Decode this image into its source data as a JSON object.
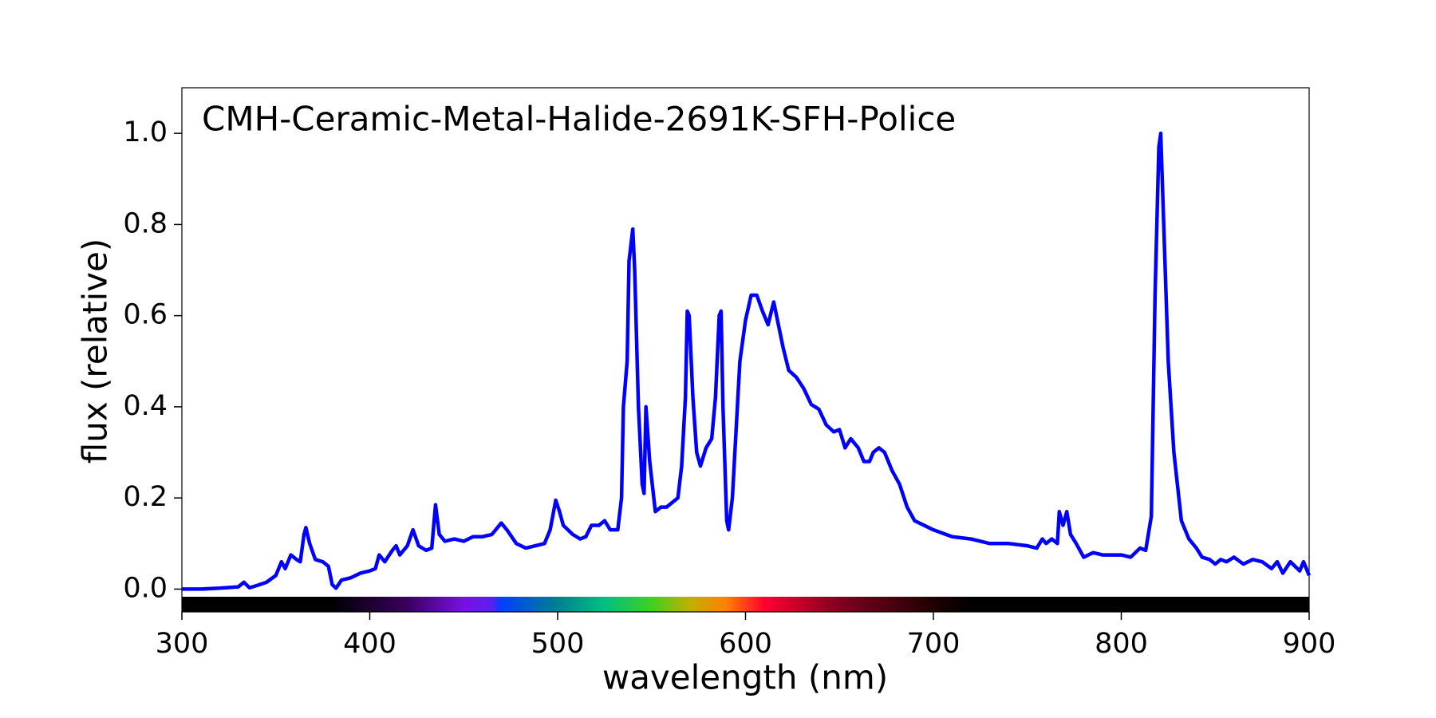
{
  "chart_data": {
    "type": "line",
    "title": "CMH-Ceramic-Metal-Halide-2691K-SFH-Police",
    "xlabel": "wavelength (nm)",
    "ylabel": "flux (relative)",
    "xlim": [
      300,
      900
    ],
    "ylim": [
      -0.05,
      1.1
    ],
    "xticks": [
      300,
      400,
      500,
      600,
      700,
      800,
      900
    ],
    "yticks": [
      {
        "value": 0,
        "label": "0.0"
      },
      0.2,
      0.4,
      0.6,
      0.8,
      {
        "value": 1,
        "label": "1.0"
      }
    ],
    "series": [
      {
        "color": "#0000ff",
        "x": [
          300,
          310,
          320,
          330,
          333,
          336,
          340,
          345,
          350,
          353,
          355,
          358,
          361,
          363,
          365,
          366,
          368,
          371,
          375,
          378,
          380,
          382,
          385,
          390,
          395,
          400,
          403,
          405,
          408,
          412,
          414,
          416,
          420,
          423,
          426,
          430,
          433,
          435,
          437,
          440,
          445,
          450,
          455,
          460,
          465,
          470,
          473,
          478,
          483,
          488,
          493,
          496,
          499,
          501,
          503,
          508,
          512,
          515,
          518,
          522,
          525,
          528,
          532,
          534,
          535,
          537,
          538,
          540,
          541,
          543,
          545,
          546,
          547,
          549,
          552,
          555,
          558,
          561,
          564,
          566,
          568,
          569,
          570,
          572,
          574,
          576,
          579,
          582,
          584,
          586,
          587,
          588,
          590,
          591,
          593,
          595,
          597,
          600,
          603,
          606,
          609,
          612,
          615,
          618,
          620,
          623,
          627,
          631,
          635,
          639,
          643,
          647,
          650,
          653,
          656,
          660,
          663,
          666,
          668,
          671,
          674,
          678,
          682,
          686,
          690,
          695,
          700,
          710,
          720,
          730,
          740,
          750,
          755,
          758,
          760,
          763,
          766,
          767,
          769,
          771,
          773,
          776,
          780,
          785,
          790,
          800,
          805,
          810,
          813,
          816,
          818,
          820,
          821,
          823,
          825,
          828,
          832,
          836,
          840,
          843,
          847,
          850,
          853,
          856,
          860,
          865,
          870,
          875,
          880,
          883,
          886,
          890,
          895,
          897,
          900
        ],
        "values": [
          0,
          0,
          0.002,
          0.005,
          0.015,
          0.003,
          0.008,
          0.015,
          0.03,
          0.06,
          0.045,
          0.075,
          0.065,
          0.06,
          0.12,
          0.135,
          0.1,
          0.065,
          0.06,
          0.05,
          0.01,
          0.002,
          0.02,
          0.025,
          0.035,
          0.04,
          0.045,
          0.075,
          0.06,
          0.085,
          0.095,
          0.075,
          0.095,
          0.13,
          0.095,
          0.085,
          0.09,
          0.185,
          0.12,
          0.105,
          0.11,
          0.105,
          0.115,
          0.115,
          0.12,
          0.145,
          0.13,
          0.1,
          0.09,
          0.095,
          0.1,
          0.13,
          0.195,
          0.17,
          0.14,
          0.12,
          0.11,
          0.115,
          0.14,
          0.14,
          0.15,
          0.13,
          0.13,
          0.2,
          0.4,
          0.5,
          0.72,
          0.79,
          0.7,
          0.4,
          0.23,
          0.21,
          0.4,
          0.28,
          0.17,
          0.18,
          0.18,
          0.19,
          0.2,
          0.27,
          0.42,
          0.61,
          0.6,
          0.42,
          0.3,
          0.27,
          0.31,
          0.33,
          0.42,
          0.6,
          0.61,
          0.4,
          0.15,
          0.13,
          0.2,
          0.35,
          0.5,
          0.59,
          0.645,
          0.645,
          0.61,
          0.58,
          0.63,
          0.57,
          0.53,
          0.48,
          0.465,
          0.44,
          0.405,
          0.395,
          0.36,
          0.345,
          0.35,
          0.31,
          0.33,
          0.31,
          0.28,
          0.28,
          0.3,
          0.31,
          0.3,
          0.26,
          0.23,
          0.18,
          0.15,
          0.14,
          0.13,
          0.115,
          0.11,
          0.1,
          0.1,
          0.095,
          0.09,
          0.11,
          0.1,
          0.11,
          0.1,
          0.17,
          0.14,
          0.17,
          0.12,
          0.1,
          0.07,
          0.08,
          0.075,
          0.075,
          0.07,
          0.09,
          0.085,
          0.16,
          0.65,
          0.97,
          1.0,
          0.75,
          0.5,
          0.3,
          0.15,
          0.11,
          0.09,
          0.07,
          0.065,
          0.055,
          0.065,
          0.06,
          0.07,
          0.055,
          0.065,
          0.06,
          0.045,
          0.06,
          0.035,
          0.06,
          0.04,
          0.06,
          0.03
        ]
      }
    ]
  }
}
